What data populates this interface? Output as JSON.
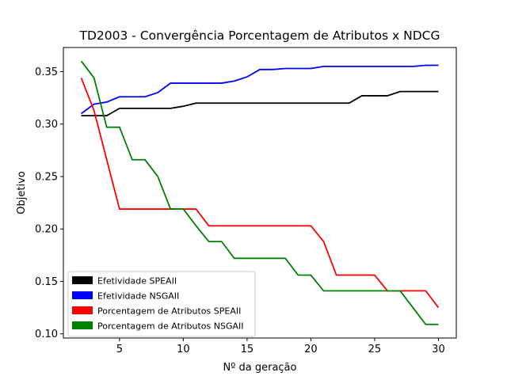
{
  "chart_data": {
    "type": "line",
    "title": "TD2003 - Convergência Porcentagem de Atributos x NDCG",
    "xlabel": "Nº da geração",
    "ylabel": "Objetivo",
    "xlim": [
      0.6,
      31.4
    ],
    "ylim": [
      0.096,
      0.373
    ],
    "xticks": [
      5,
      10,
      15,
      20,
      25,
      30
    ],
    "yticks": [
      0.1,
      0.15,
      0.2,
      0.25,
      0.3,
      0.35
    ],
    "yticks_labels": [
      "0.10",
      "0.15",
      "0.20",
      "0.25",
      "0.30",
      "0.35"
    ],
    "grid": false,
    "legend_position": "lower-left",
    "x": [
      2,
      3,
      4,
      5,
      6,
      7,
      8,
      9,
      10,
      11,
      12,
      13,
      14,
      15,
      16,
      17,
      18,
      19,
      20,
      21,
      22,
      23,
      24,
      25,
      26,
      27,
      28,
      29,
      30
    ],
    "series": [
      {
        "name": "Efetividade SPEAII",
        "color": "#000000",
        "values": [
          0.308,
          0.308,
          0.308,
          0.315,
          0.315,
          0.315,
          0.315,
          0.315,
          0.317,
          0.32,
          0.32,
          0.32,
          0.32,
          0.32,
          0.32,
          0.32,
          0.32,
          0.32,
          0.32,
          0.32,
          0.32,
          0.32,
          0.327,
          0.327,
          0.327,
          0.331,
          0.331,
          0.331,
          0.331
        ]
      },
      {
        "name": "Efetividade NSGAII",
        "color": "#0000ff",
        "values": [
          0.31,
          0.319,
          0.321,
          0.326,
          0.326,
          0.326,
          0.33,
          0.339,
          0.339,
          0.339,
          0.339,
          0.339,
          0.341,
          0.345,
          0.352,
          0.352,
          0.353,
          0.353,
          0.353,
          0.355,
          0.355,
          0.355,
          0.355,
          0.355,
          0.355,
          0.355,
          0.355,
          0.356,
          0.356
        ]
      },
      {
        "name": "Porcentagem de Atributos SPEAII",
        "color": "#ff0000",
        "values": [
          0.344,
          0.313,
          0.266,
          0.219,
          0.219,
          0.219,
          0.219,
          0.219,
          0.219,
          0.219,
          0.203,
          0.203,
          0.203,
          0.203,
          0.203,
          0.203,
          0.203,
          0.203,
          0.203,
          0.188,
          0.156,
          0.156,
          0.156,
          0.156,
          0.141,
          0.141,
          0.141,
          0.141,
          0.125
        ]
      },
      {
        "name": "Porcentagem de Atributos NSGAII",
        "color": "#008000",
        "values": [
          0.36,
          0.344,
          0.297,
          0.297,
          0.266,
          0.266,
          0.25,
          0.219,
          0.219,
          0.203,
          0.188,
          0.188,
          0.172,
          0.172,
          0.172,
          0.172,
          0.172,
          0.156,
          0.156,
          0.141,
          0.141,
          0.141,
          0.141,
          0.141,
          0.141,
          0.141,
          0.125,
          0.109,
          0.109
        ]
      }
    ]
  }
}
